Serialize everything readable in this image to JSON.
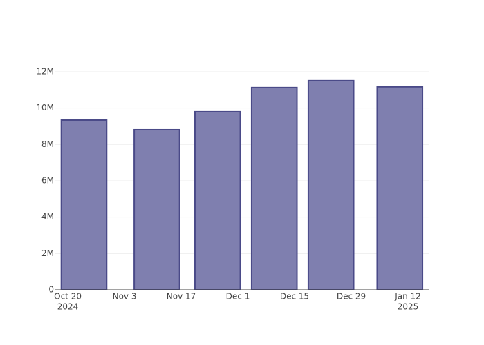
{
  "chart_data": {
    "type": "bar",
    "x": [
      "2024-10-24",
      "2024-11-11",
      "2024-11-26",
      "2024-12-10",
      "2024-12-24",
      "2025-01-10"
    ],
    "values": [
      9340000,
      8810000,
      9800000,
      11130000,
      11510000,
      11170000
    ],
    "color": "#7f7faf",
    "edge_color": "#4a4a88",
    "xlim": [
      "2024-10-16T22:00",
      "2025-01-17T03:00"
    ],
    "xticks": [
      {
        "value": "2024-10-20",
        "label": [
          "Oct 20",
          "2024"
        ]
      },
      {
        "value": "2024-11-03",
        "label": [
          "Nov 3"
        ]
      },
      {
        "value": "2024-11-17",
        "label": [
          "Nov 17"
        ]
      },
      {
        "value": "2024-12-01",
        "label": [
          "Dec 1"
        ]
      },
      {
        "value": "2024-12-15",
        "label": [
          "Dec 15"
        ]
      },
      {
        "value": "2024-12-29",
        "label": [
          "Dec 29"
        ]
      },
      {
        "value": "2025-01-12",
        "label": [
          "Jan 12",
          "2025"
        ]
      }
    ],
    "ylim": [
      0,
      12150000
    ],
    "yticks": [
      0,
      {
        "value": 2000000,
        "label": "2M"
      },
      {
        "value": 4000000,
        "label": "4M"
      },
      {
        "value": 6000000,
        "label": "6M"
      },
      {
        "value": 8000000,
        "label": "8M"
      },
      {
        "value": 10000000,
        "label": "10M"
      },
      {
        "value": 12000000,
        "label": "12M"
      }
    ],
    "grid": true
  }
}
